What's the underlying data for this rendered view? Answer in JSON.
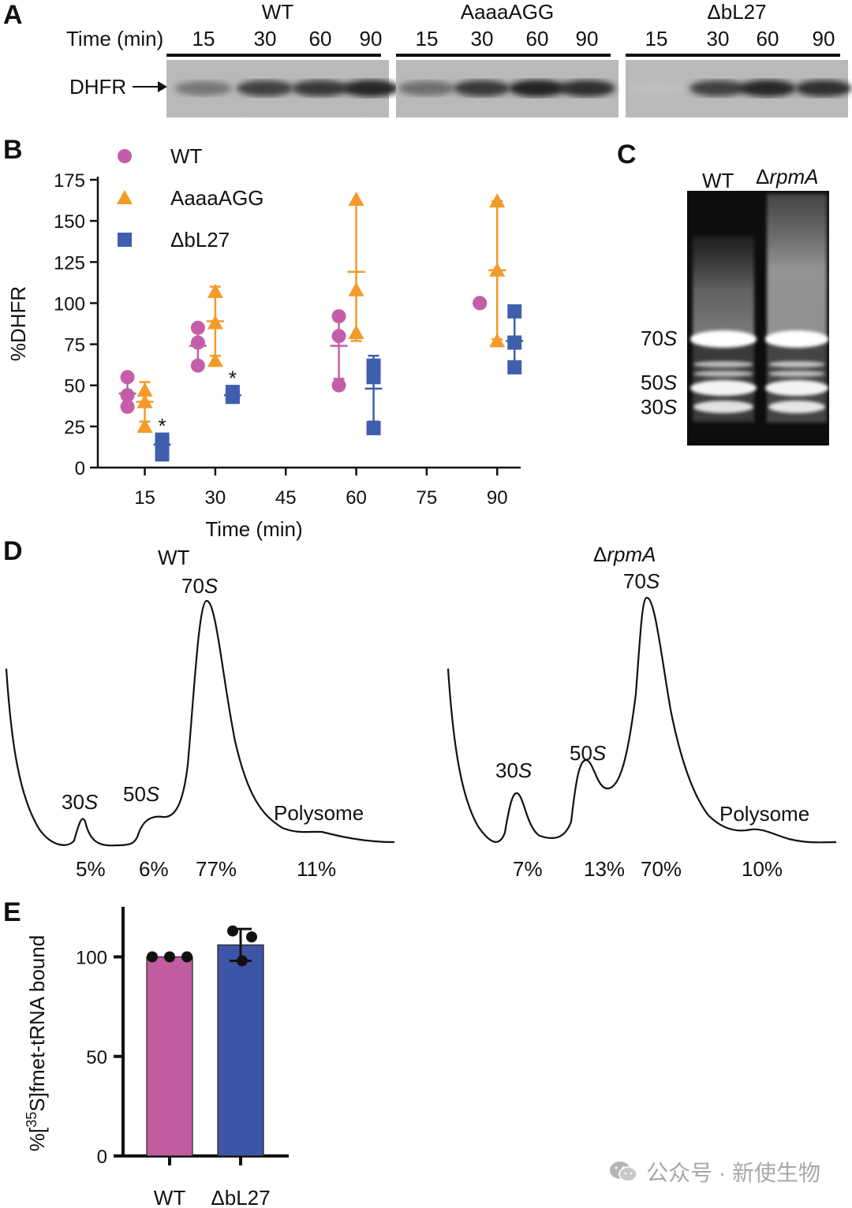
{
  "panels": [
    "A",
    "B",
    "C",
    "D",
    "E"
  ],
  "panelA": {
    "time_label": "Time (min)",
    "groups": [
      {
        "name": "WT",
        "times": [
          "15",
          "30",
          "60",
          "90"
        ],
        "band_intensity": [
          0.45,
          0.75,
          0.8,
          0.9
        ]
      },
      {
        "name": "AaaaAGG",
        "times": [
          "15",
          "30",
          "60",
          "90"
        ],
        "band_intensity": [
          0.5,
          0.8,
          0.92,
          0.85
        ]
      },
      {
        "name": "ΔbL27",
        "times": [
          "15",
          "30",
          "60",
          "90"
        ],
        "band_intensity": [
          0.05,
          0.75,
          0.9,
          0.85
        ]
      }
    ],
    "band_label": "DHFR"
  },
  "chart_data": [
    {
      "panel": "B",
      "type": "scatter",
      "xlabel": "Time (min)",
      "ylabel": "%DHFR",
      "xlim": [
        5,
        95
      ],
      "ylim": [
        0,
        175
      ],
      "xticks": [
        "15",
        "30",
        "45",
        "60",
        "75",
        "90"
      ],
      "yticks": [
        "0",
        "25",
        "50",
        "75",
        "100",
        "125",
        "150",
        "175"
      ],
      "legend_position": "top-left",
      "series": [
        {
          "name": "WT",
          "color": "#c45ea8",
          "marker": "circle",
          "offset": -4,
          "points": [
            [
              15,
              [
                55,
                44,
                37
              ],
              45,
              8
            ],
            [
              30,
              [
                85,
                76,
                62
              ],
              74,
              10
            ],
            [
              60,
              [
                92,
                80,
                50
              ],
              74,
              20
            ],
            [
              90,
              [
                100,
                100,
                100
              ],
              100,
              0
            ]
          ]
        },
        {
          "name": "AaaaAGG",
          "color": "#f39a2a",
          "marker": "triangle",
          "offset": 0,
          "points": [
            [
              15,
              [
                47,
                40,
                25
              ],
              40,
              12
            ],
            [
              30,
              [
                107,
                88,
                65
              ],
              89,
              21
            ],
            [
              60,
              [
                163,
                108,
                82
              ],
              119,
              42
            ],
            [
              90,
              [
                162,
                120,
                77
              ],
              120,
              42
            ]
          ]
        },
        {
          "name": "ΔbL27",
          "color": "#3f5fae",
          "marker": "square",
          "offset": 4,
          "points": [
            [
              15,
              [
                17,
                15,
                8
              ],
              14,
              4
            ],
            [
              30,
              [
                46,
                44,
                43
              ],
              44,
              1
            ],
            [
              60,
              [
                62,
                55,
                24
              ],
              48,
              20
            ],
            [
              90,
              [
                95,
                76,
                61
              ],
              77,
              17
            ]
          ]
        }
      ],
      "annotations": [
        {
          "x": 15,
          "y": 25,
          "text": "*",
          "series": "ΔbL27"
        },
        {
          "x": 30,
          "y": 54,
          "text": "*",
          "series": "ΔbL27"
        }
      ]
    },
    {
      "panel": "E",
      "type": "bar",
      "categories": [
        "WT",
        "ΔbL27"
      ],
      "values": [
        100,
        106
      ],
      "errors": [
        0,
        8
      ],
      "points": [
        [
          100,
          100,
          100
        ],
        [
          113,
          110,
          98
        ]
      ],
      "colors": [
        "#c15d9f",
        "#3d55a5"
      ],
      "ylabel_prefix": "%[",
      "ylabel_sup": "35",
      "ylabel_suffix": "S]fmet-tRNA bound",
      "ylim": [
        0,
        120
      ],
      "yticks": [
        "0",
        "50",
        "100"
      ]
    }
  ],
  "panelC": {
    "lanes": [
      "WT",
      "ΔrpmA"
    ],
    "bands": [
      {
        "num": "70",
        "unit": "S"
      },
      {
        "num": "50",
        "unit": "S"
      },
      {
        "num": "30",
        "unit": "S"
      }
    ]
  },
  "panelD": {
    "profiles": [
      {
        "title": "WT",
        "peaks": [
          {
            "num": "30",
            "unit": "S"
          },
          {
            "num": "50",
            "unit": "S"
          },
          {
            "num": "70",
            "unit": "S"
          }
        ],
        "polysome": "Polysome",
        "percents": [
          "5%",
          "6%",
          "77%",
          "11%"
        ]
      },
      {
        "title_prefix": "Δ",
        "title": "rpmA",
        "peaks": [
          {
            "num": "30",
            "unit": "S"
          },
          {
            "num": "50",
            "unit": "S"
          },
          {
            "num": "70",
            "unit": "S"
          }
        ],
        "polysome": "Polysome",
        "percents": [
          "7%",
          "13%",
          "70%",
          "10%"
        ]
      }
    ]
  },
  "watermark": "公众号 · 新使生物"
}
